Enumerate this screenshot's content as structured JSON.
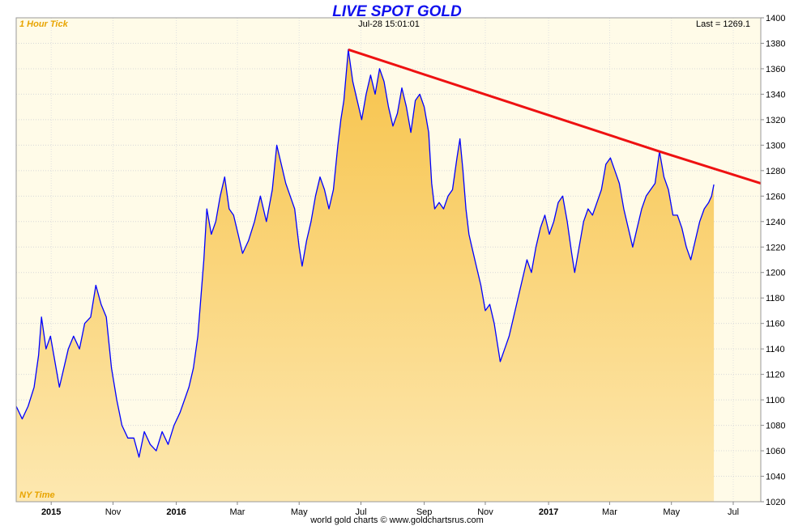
{
  "chart_data": {
    "type": "area",
    "title": "LIVE SPOT GOLD",
    "timeframe_label": "1 Hour Tick",
    "timestamp": "Jul-28  15:01:01",
    "last_label": "Last = 1269.1",
    "timezone_label": "NY Time",
    "footer": "world gold charts © www.goldchartsrus.com",
    "ylim": [
      1020,
      1400
    ],
    "y_ticks": [
      1020,
      1040,
      1060,
      1080,
      1100,
      1120,
      1140,
      1160,
      1180,
      1200,
      1220,
      1240,
      1260,
      1280,
      1300,
      1320,
      1340,
      1360,
      1380,
      1400
    ],
    "grid": true,
    "x_ticks": [
      {
        "label": "2015",
        "pos": 0.047,
        "bold": true
      },
      {
        "label": "Nov",
        "pos": 0.13
      },
      {
        "label": "2016",
        "pos": 0.215,
        "bold": true
      },
      {
        "label": "Mar",
        "pos": 0.297
      },
      {
        "label": "May",
        "pos": 0.38
      },
      {
        "label": "Jul",
        "pos": 0.463
      },
      {
        "label": "Sep",
        "pos": 0.548
      },
      {
        "label": "Nov",
        "pos": 0.63
      },
      {
        "label": "2017",
        "pos": 0.715,
        "bold": true
      },
      {
        "label": "Mar",
        "pos": 0.797
      },
      {
        "label": "May",
        "pos": 0.88
      },
      {
        "label": "Jul",
        "pos": 0.963
      }
    ],
    "series": [
      {
        "color": "#0000ff",
        "fill_top": "#f7c34a",
        "fill_bottom": "#fde8b0",
        "values": [
          [
            0.0,
            1095
          ],
          [
            0.008,
            1085
          ],
          [
            0.016,
            1095
          ],
          [
            0.024,
            1110
          ],
          [
            0.03,
            1135
          ],
          [
            0.034,
            1165
          ],
          [
            0.04,
            1140
          ],
          [
            0.046,
            1150
          ],
          [
            0.052,
            1130
          ],
          [
            0.058,
            1110
          ],
          [
            0.064,
            1125
          ],
          [
            0.07,
            1140
          ],
          [
            0.077,
            1150
          ],
          [
            0.085,
            1140
          ],
          [
            0.092,
            1160
          ],
          [
            0.1,
            1165
          ],
          [
            0.107,
            1190
          ],
          [
            0.114,
            1175
          ],
          [
            0.121,
            1165
          ],
          [
            0.128,
            1125
          ],
          [
            0.135,
            1100
          ],
          [
            0.142,
            1080
          ],
          [
            0.15,
            1070
          ],
          [
            0.158,
            1070
          ],
          [
            0.165,
            1055
          ],
          [
            0.172,
            1075
          ],
          [
            0.18,
            1065
          ],
          [
            0.188,
            1060
          ],
          [
            0.196,
            1075
          ],
          [
            0.204,
            1065
          ],
          [
            0.212,
            1080
          ],
          [
            0.22,
            1090
          ],
          [
            0.226,
            1100
          ],
          [
            0.232,
            1110
          ],
          [
            0.238,
            1125
          ],
          [
            0.244,
            1150
          ],
          [
            0.248,
            1180
          ],
          [
            0.252,
            1210
          ],
          [
            0.256,
            1250
          ],
          [
            0.262,
            1230
          ],
          [
            0.268,
            1240
          ],
          [
            0.274,
            1260
          ],
          [
            0.28,
            1275
          ],
          [
            0.286,
            1250
          ],
          [
            0.292,
            1245
          ],
          [
            0.298,
            1230
          ],
          [
            0.304,
            1215
          ],
          [
            0.312,
            1225
          ],
          [
            0.32,
            1240
          ],
          [
            0.328,
            1260
          ],
          [
            0.336,
            1240
          ],
          [
            0.344,
            1265
          ],
          [
            0.35,
            1300
          ],
          [
            0.356,
            1285
          ],
          [
            0.362,
            1270
          ],
          [
            0.368,
            1260
          ],
          [
            0.374,
            1250
          ],
          [
            0.38,
            1220
          ],
          [
            0.384,
            1205
          ],
          [
            0.39,
            1225
          ],
          [
            0.396,
            1240
          ],
          [
            0.402,
            1260
          ],
          [
            0.408,
            1275
          ],
          [
            0.414,
            1265
          ],
          [
            0.42,
            1250
          ],
          [
            0.426,
            1265
          ],
          [
            0.432,
            1300
          ],
          [
            0.436,
            1320
          ],
          [
            0.44,
            1335
          ],
          [
            0.446,
            1375
          ],
          [
            0.452,
            1350
          ],
          [
            0.458,
            1335
          ],
          [
            0.464,
            1320
          ],
          [
            0.47,
            1340
          ],
          [
            0.476,
            1355
          ],
          [
            0.482,
            1340
          ],
          [
            0.488,
            1360
          ],
          [
            0.494,
            1350
          ],
          [
            0.5,
            1330
          ],
          [
            0.506,
            1315
          ],
          [
            0.512,
            1325
          ],
          [
            0.518,
            1345
          ],
          [
            0.524,
            1330
          ],
          [
            0.53,
            1310
          ],
          [
            0.536,
            1335
          ],
          [
            0.542,
            1340
          ],
          [
            0.548,
            1330
          ],
          [
            0.554,
            1310
          ],
          [
            0.558,
            1270
          ],
          [
            0.562,
            1250
          ],
          [
            0.568,
            1255
          ],
          [
            0.574,
            1250
          ],
          [
            0.58,
            1260
          ],
          [
            0.586,
            1265
          ],
          [
            0.592,
            1290
          ],
          [
            0.596,
            1305
          ],
          [
            0.6,
            1280
          ],
          [
            0.604,
            1250
          ],
          [
            0.608,
            1230
          ],
          [
            0.612,
            1220
          ],
          [
            0.618,
            1205
          ],
          [
            0.624,
            1190
          ],
          [
            0.63,
            1170
          ],
          [
            0.636,
            1175
          ],
          [
            0.642,
            1160
          ],
          [
            0.646,
            1145
          ],
          [
            0.65,
            1130
          ],
          [
            0.656,
            1140
          ],
          [
            0.662,
            1150
          ],
          [
            0.668,
            1165
          ],
          [
            0.674,
            1180
          ],
          [
            0.68,
            1195
          ],
          [
            0.686,
            1210
          ],
          [
            0.692,
            1200
          ],
          [
            0.698,
            1220
          ],
          [
            0.704,
            1235
          ],
          [
            0.71,
            1245
          ],
          [
            0.716,
            1230
          ],
          [
            0.722,
            1240
          ],
          [
            0.728,
            1255
          ],
          [
            0.734,
            1260
          ],
          [
            0.74,
            1240
          ],
          [
            0.746,
            1215
          ],
          [
            0.75,
            1200
          ],
          [
            0.756,
            1220
          ],
          [
            0.762,
            1240
          ],
          [
            0.768,
            1250
          ],
          [
            0.774,
            1245
          ],
          [
            0.78,
            1255
          ],
          [
            0.786,
            1265
          ],
          [
            0.792,
            1285
          ],
          [
            0.798,
            1290
          ],
          [
            0.804,
            1280
          ],
          [
            0.81,
            1270
          ],
          [
            0.816,
            1250
          ],
          [
            0.822,
            1235
          ],
          [
            0.828,
            1220
          ],
          [
            0.834,
            1235
          ],
          [
            0.84,
            1250
          ],
          [
            0.846,
            1260
          ],
          [
            0.852,
            1265
          ],
          [
            0.858,
            1270
          ],
          [
            0.864,
            1295
          ],
          [
            0.87,
            1275
          ],
          [
            0.876,
            1265
          ],
          [
            0.882,
            1245
          ],
          [
            0.888,
            1245
          ],
          [
            0.894,
            1235
          ],
          [
            0.9,
            1220
          ],
          [
            0.906,
            1210
          ],
          [
            0.912,
            1225
          ],
          [
            0.918,
            1240
          ],
          [
            0.924,
            1250
          ],
          [
            0.93,
            1255
          ],
          [
            0.934,
            1260
          ],
          [
            0.937,
            1269.1
          ]
        ]
      }
    ],
    "trendline": {
      "color": "#ee1111",
      "points": [
        [
          0.446,
          1375
        ],
        [
          0.864,
          1295
        ],
        [
          1.0,
          1270
        ]
      ]
    }
  }
}
